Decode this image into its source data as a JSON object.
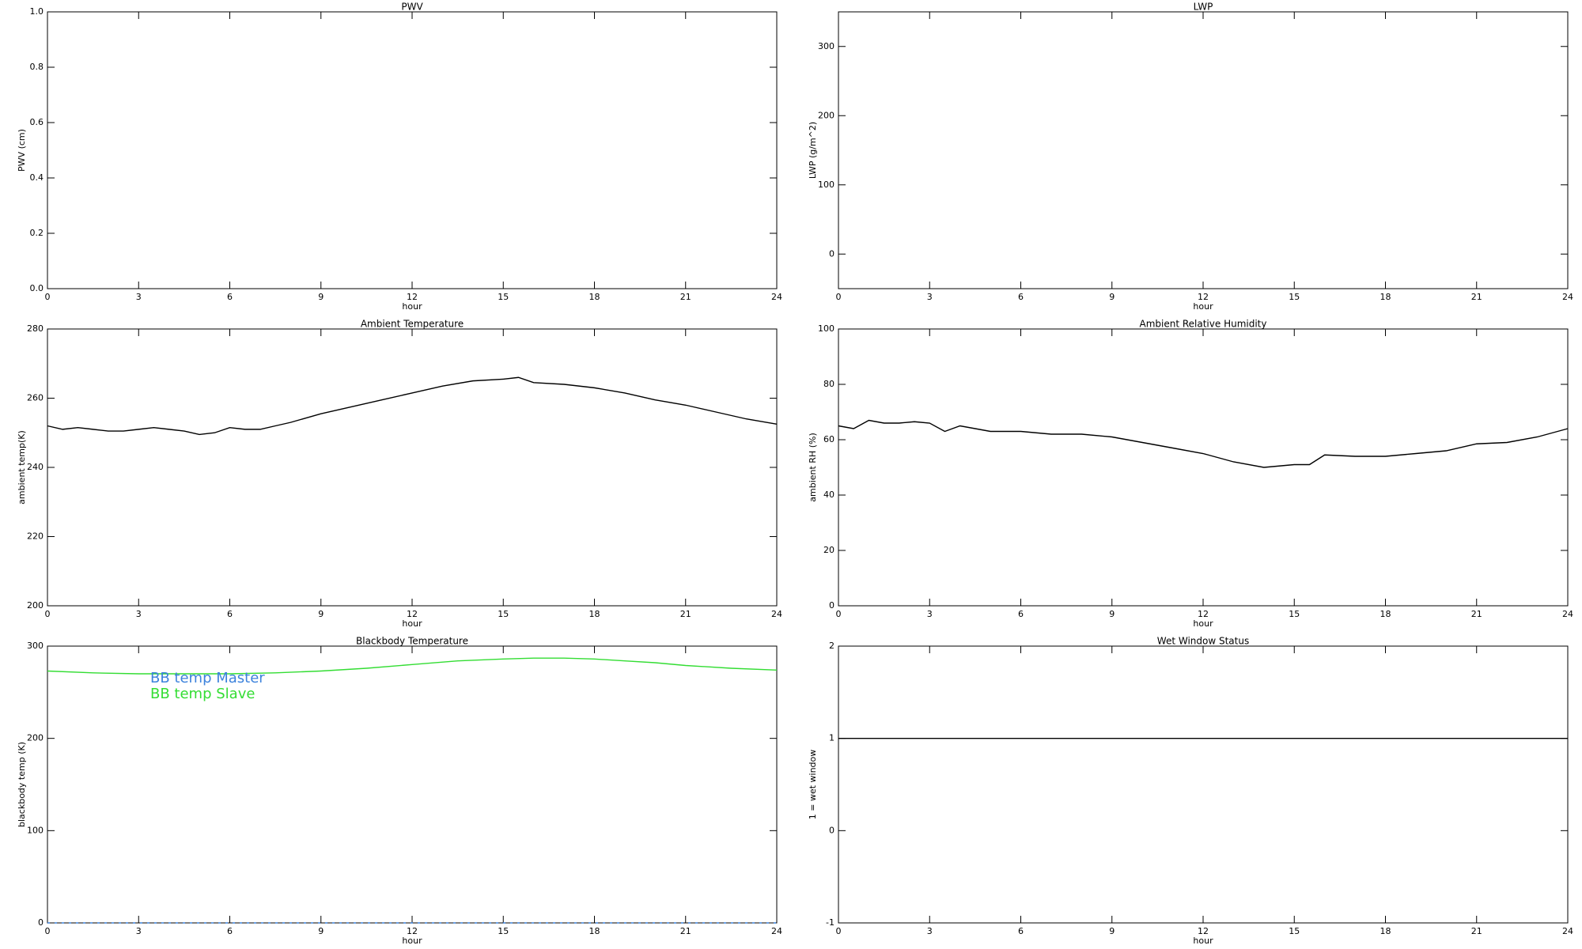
{
  "chart_data": [
    {
      "type": "line",
      "title": "PWV",
      "x_label": "hour",
      "y_label": "PWV (cm)",
      "xlim": [
        0,
        24
      ],
      "xticks": [
        0,
        3,
        6,
        9,
        12,
        15,
        18,
        21,
        24
      ],
      "ylim": [
        0,
        1
      ],
      "yticks": [
        {
          "value": 0,
          "label": "0.0"
        },
        {
          "value": 0.2,
          "label": "0.2"
        },
        {
          "value": 0.4,
          "label": "0.4"
        },
        {
          "value": 0.6,
          "label": "0.6"
        },
        {
          "value": 0.8,
          "label": "0.8"
        },
        {
          "value": 1,
          "label": "1.0"
        }
      ]
    },
    {
      "type": "line",
      "title": "LWP",
      "x_label": "hour",
      "y_label": "LWP (g/m^2)",
      "xlim": [
        0,
        24
      ],
      "xticks": [
        0,
        3,
        6,
        9,
        12,
        15,
        18,
        21,
        24
      ],
      "ylim": [
        -50,
        350
      ],
      "yticks": [
        0,
        100,
        200,
        300
      ]
    },
    {
      "type": "line",
      "title": "Ambient Temperature",
      "x_label": "hour",
      "y_label": "ambient temp(K)",
      "xlim": [
        0,
        24
      ],
      "xticks": [
        0,
        3,
        6,
        9,
        12,
        15,
        18,
        21,
        24
      ],
      "ylim": [
        200,
        280
      ],
      "yticks": [
        200,
        220,
        240,
        260,
        280
      ],
      "x": [
        0,
        0.5,
        1,
        1.5,
        2,
        2.5,
        3,
        3.5,
        4,
        4.5,
        5,
        5.5,
        6,
        6.5,
        7,
        7.5,
        8,
        9,
        10,
        11,
        12,
        13,
        14,
        15,
        15.5,
        16,
        17,
        18,
        19,
        20,
        21,
        22,
        23,
        24
      ],
      "series": [
        {
          "name": "ambient temp",
          "color": "#000000",
          "values": [
            252,
            251,
            251.5,
            251,
            250.5,
            250.5,
            251,
            251.5,
            251,
            250.5,
            249.5,
            250,
            251.5,
            251,
            251,
            252,
            253,
            255.5,
            257.5,
            259.5,
            261.5,
            263.5,
            265,
            265.5,
            266,
            264.5,
            264,
            263,
            261.5,
            259.5,
            258,
            256,
            254,
            252.5
          ]
        }
      ]
    },
    {
      "type": "line",
      "title": "Ambient Relative Humidity",
      "x_label": "hour",
      "y_label": "ambient RH (%)",
      "xlim": [
        0,
        24
      ],
      "xticks": [
        0,
        3,
        6,
        9,
        12,
        15,
        18,
        21,
        24
      ],
      "ylim": [
        0,
        100
      ],
      "yticks": [
        0,
        20,
        40,
        60,
        80,
        100
      ],
      "x": [
        0,
        0.5,
        1,
        1.5,
        2,
        2.5,
        3,
        3.5,
        4,
        4.5,
        5,
        6,
        7,
        8,
        9,
        10,
        11,
        12,
        13,
        14,
        15,
        15.5,
        16,
        17,
        18,
        19,
        20,
        21,
        22,
        23,
        24
      ],
      "series": [
        {
          "name": "ambient RH",
          "color": "#000000",
          "values": [
            65,
            64,
            67,
            66,
            66,
            66.5,
            66,
            63,
            65,
            64,
            63,
            63,
            62,
            62,
            61,
            59,
            57,
            55,
            52,
            50,
            51,
            51,
            54.5,
            54,
            54,
            55,
            56,
            58.5,
            59,
            61,
            64
          ]
        }
      ]
    },
    {
      "type": "line",
      "title": "Blackbody Temperature",
      "x_label": "hour",
      "y_label": "blackbody temp (K)",
      "xlim": [
        0,
        24
      ],
      "xticks": [
        0,
        3,
        6,
        9,
        12,
        15,
        18,
        21,
        24
      ],
      "ylim": [
        0,
        300
      ],
      "yticks": [
        0,
        100,
        200,
        300
      ],
      "x": [
        0,
        1.5,
        3,
        4.5,
        6,
        7.5,
        9,
        10.5,
        12,
        13.5,
        15,
        16,
        17,
        18,
        19,
        20,
        21,
        22.5,
        24
      ],
      "series": [
        {
          "name": "BB temp Master",
          "color": "#3c82dc",
          "values": [
            0,
            0,
            0,
            0,
            0,
            0,
            0,
            0,
            0,
            0,
            0,
            0,
            0,
            0,
            0,
            0,
            0,
            0,
            0
          ]
        },
        {
          "name": "BB temp Slave",
          "color": "#33dd33",
          "values": [
            273,
            271,
            270,
            270,
            270,
            271,
            273,
            276,
            280,
            284,
            286,
            287,
            287,
            286,
            284,
            282,
            279,
            276,
            274
          ]
        }
      ]
    },
    {
      "type": "line",
      "title": "Wet Window Status",
      "x_label": "hour",
      "y_label": "1 = wet window",
      "xlim": [
        0,
        24
      ],
      "xticks": [
        0,
        3,
        6,
        9,
        12,
        15,
        18,
        21,
        24
      ],
      "ylim": [
        -1,
        2
      ],
      "yticks": [
        -1,
        0,
        1,
        2
      ],
      "x": [
        0,
        24
      ],
      "series": [
        {
          "name": "wet window",
          "color": "#000000",
          "values": [
            1,
            1
          ]
        }
      ]
    }
  ]
}
